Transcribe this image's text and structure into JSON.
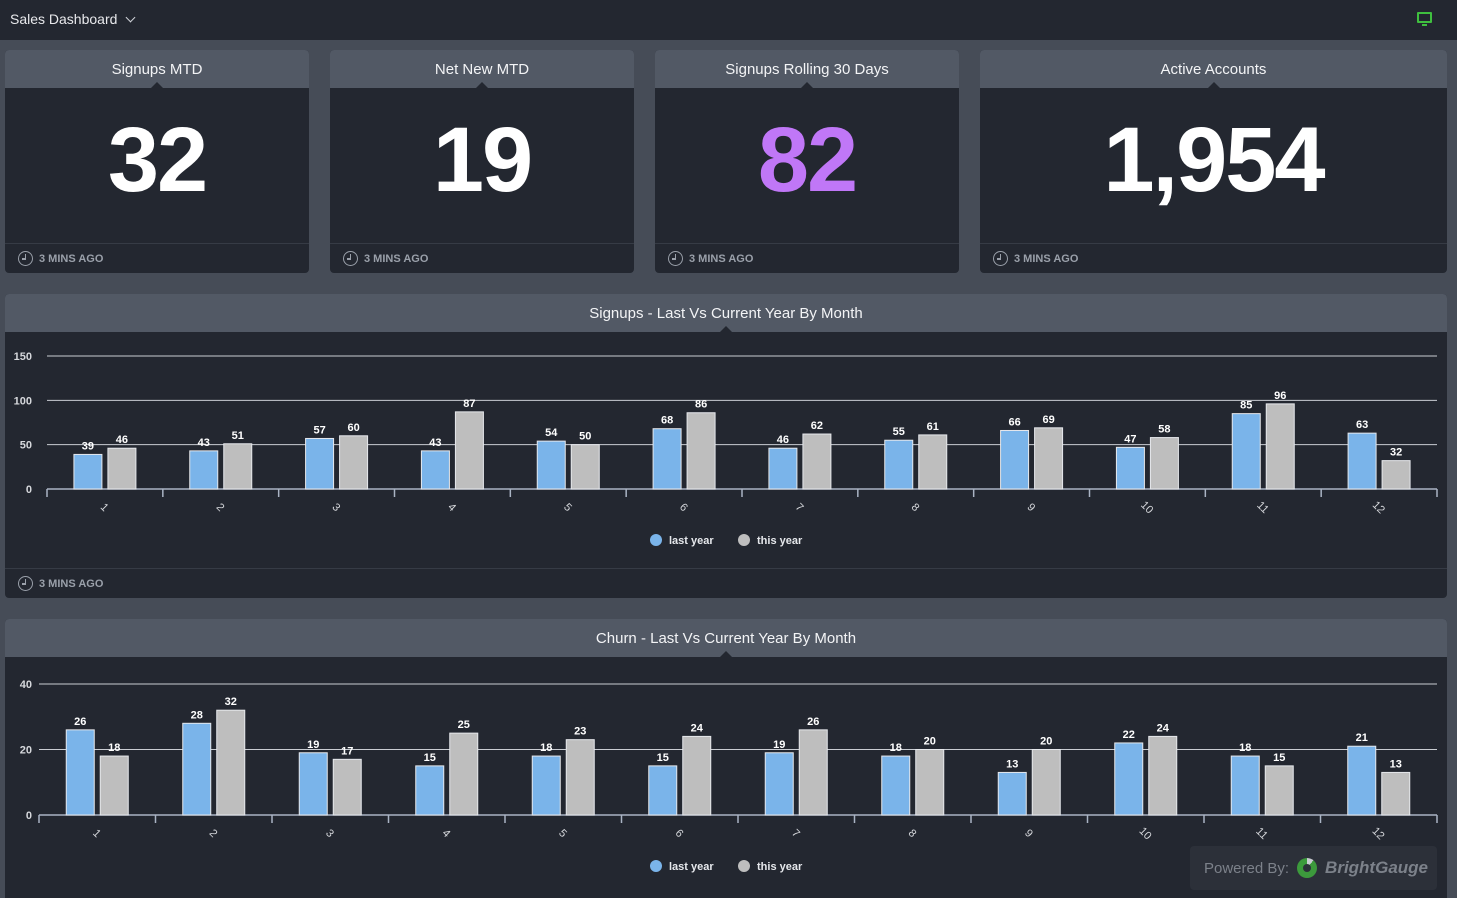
{
  "header": {
    "dashboard_title": "Sales Dashboard",
    "display_icon": "monitor-icon"
  },
  "colors": {
    "last_year": "#7ab4ea",
    "this_year": "#bebebe",
    "accent_purple": "#c077f7",
    "status_green": "#3fbf3f"
  },
  "kpis": [
    {
      "title": "Signups MTD",
      "value": "32",
      "updated": "3 MINS AGO"
    },
    {
      "title": "Net New MTD",
      "value": "19",
      "updated": "3 MINS AGO"
    },
    {
      "title": "Signups Rolling 30 Days",
      "value": "82",
      "updated": "3 MINS AGO"
    },
    {
      "title": "Active Accounts",
      "value": "1,954",
      "updated": "3 MINS AGO"
    }
  ],
  "widgets": {
    "signups": {
      "updated": "3 MINS AGO"
    }
  },
  "chart_data": [
    {
      "type": "bar",
      "title": "Signups - Last Vs Current Year By Month",
      "xlabel": "",
      "ylabel": "",
      "categories": [
        "1",
        "2",
        "3",
        "4",
        "5",
        "6",
        "7",
        "8",
        "9",
        "10",
        "11",
        "12"
      ],
      "series": [
        {
          "name": "last year",
          "values": [
            39,
            43,
            57,
            43,
            54,
            68,
            46,
            55,
            66,
            47,
            85,
            63
          ]
        },
        {
          "name": "this year",
          "values": [
            46,
            51,
            60,
            87,
            50,
            86,
            62,
            61,
            69,
            58,
            96,
            32
          ]
        }
      ],
      "yticks": [
        0,
        50,
        100,
        150
      ],
      "ylim": [
        0,
        150
      ],
      "grid": true,
      "legend": "bottom-center"
    },
    {
      "type": "bar",
      "title": "Churn - Last Vs Current Year By Month",
      "xlabel": "",
      "ylabel": "",
      "categories": [
        "1",
        "2",
        "3",
        "4",
        "5",
        "6",
        "7",
        "8",
        "9",
        "10",
        "11",
        "12"
      ],
      "series": [
        {
          "name": "last year",
          "values": [
            26,
            28,
            19,
            15,
            18,
            15,
            19,
            18,
            13,
            22,
            18,
            21
          ]
        },
        {
          "name": "this year",
          "values": [
            18,
            32,
            17,
            25,
            23,
            24,
            26,
            20,
            20,
            24,
            15,
            13
          ]
        }
      ],
      "yticks": [
        0,
        20,
        40
      ],
      "ylim": [
        0,
        40
      ],
      "grid": true,
      "legend": "bottom-center"
    }
  ],
  "footer": {
    "powered_by": "Powered By:",
    "brand": "BrightGauge"
  }
}
